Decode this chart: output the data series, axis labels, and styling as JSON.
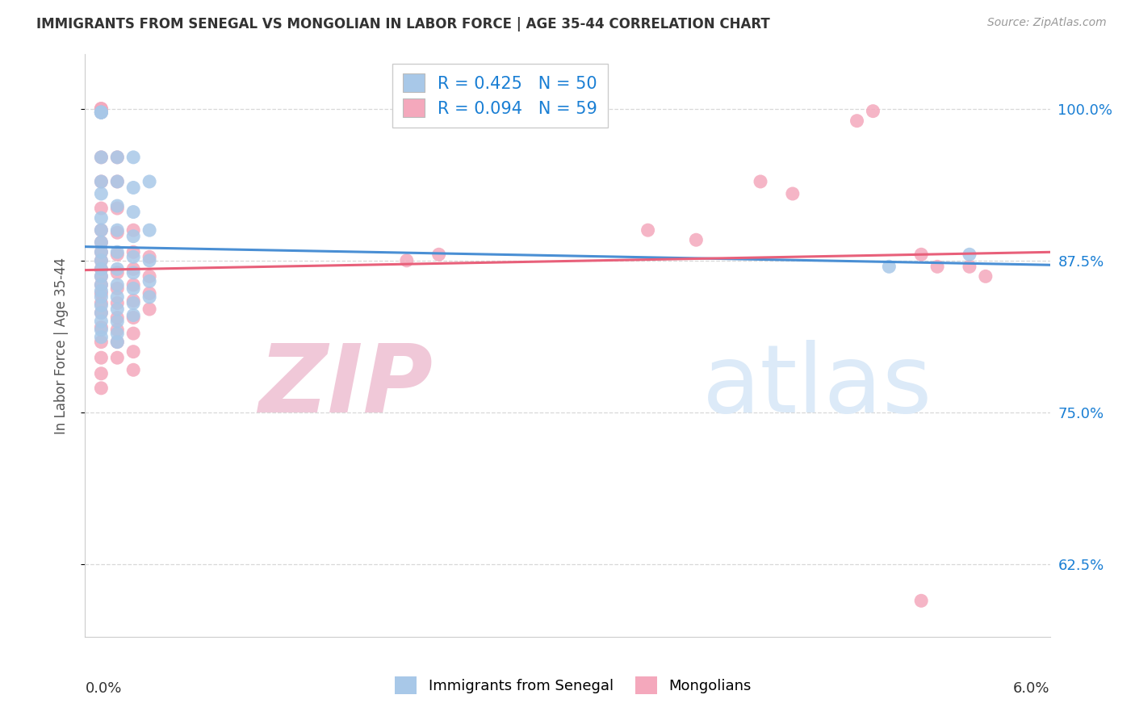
{
  "title": "IMMIGRANTS FROM SENEGAL VS MONGOLIAN IN LABOR FORCE | AGE 35-44 CORRELATION CHART",
  "source_text": "Source: ZipAtlas.com",
  "ylabel": "In Labor Force | Age 35-44",
  "ytick_labels": [
    "100.0%",
    "87.5%",
    "75.0%",
    "62.5%"
  ],
  "ytick_values": [
    1.0,
    0.875,
    0.75,
    0.625
  ],
  "xlim": [
    0.0,
    0.06
  ],
  "ylim": [
    0.565,
    1.045
  ],
  "legend_r_senegal": "R = 0.425",
  "legend_n_senegal": "N = 50",
  "legend_r_mongolian": "R = 0.094",
  "legend_n_mongolian": "N = 59",
  "senegal_color": "#a8c8e8",
  "mongolian_color": "#f4a8bc",
  "line_senegal_color": "#4a8fd4",
  "line_mongolian_color": "#e8607a",
  "watermark_color": "#dceaf8",
  "legend_text_color": "#1a7fd4",
  "title_color": "#333333",
  "source_color": "#999999",
  "ylabel_color": "#555555",
  "right_tick_color": "#1a7fd4",
  "bottom_label_color": "#333333",
  "grid_color": "#d8d8d8",
  "border_color": "#cccccc",
  "senegal_points": [
    [
      0.001,
      0.997
    ],
    [
      0.001,
      0.997
    ],
    [
      0.001,
      0.997
    ],
    [
      0.001,
      0.997
    ],
    [
      0.001,
      0.96
    ],
    [
      0.001,
      0.94
    ],
    [
      0.001,
      0.93
    ],
    [
      0.001,
      0.91
    ],
    [
      0.001,
      0.9
    ],
    [
      0.001,
      0.89
    ],
    [
      0.001,
      0.882
    ],
    [
      0.001,
      0.875
    ],
    [
      0.001,
      0.868
    ],
    [
      0.001,
      0.862
    ],
    [
      0.001,
      0.855
    ],
    [
      0.001,
      0.85
    ],
    [
      0.001,
      0.845
    ],
    [
      0.001,
      0.838
    ],
    [
      0.001,
      0.832
    ],
    [
      0.001,
      0.825
    ],
    [
      0.001,
      0.818
    ],
    [
      0.001,
      0.812
    ],
    [
      0.002,
      0.96
    ],
    [
      0.002,
      0.94
    ],
    [
      0.002,
      0.92
    ],
    [
      0.002,
      0.9
    ],
    [
      0.002,
      0.882
    ],
    [
      0.002,
      0.868
    ],
    [
      0.002,
      0.855
    ],
    [
      0.002,
      0.845
    ],
    [
      0.002,
      0.835
    ],
    [
      0.002,
      0.825
    ],
    [
      0.002,
      0.815
    ],
    [
      0.002,
      0.808
    ],
    [
      0.003,
      0.96
    ],
    [
      0.003,
      0.935
    ],
    [
      0.003,
      0.915
    ],
    [
      0.003,
      0.895
    ],
    [
      0.003,
      0.878
    ],
    [
      0.003,
      0.865
    ],
    [
      0.003,
      0.852
    ],
    [
      0.003,
      0.84
    ],
    [
      0.003,
      0.83
    ],
    [
      0.004,
      0.94
    ],
    [
      0.004,
      0.9
    ],
    [
      0.004,
      0.875
    ],
    [
      0.004,
      0.858
    ],
    [
      0.004,
      0.845
    ],
    [
      0.05,
      0.87
    ],
    [
      0.055,
      0.88
    ]
  ],
  "mongolian_points": [
    [
      0.001,
      1.0
    ],
    [
      0.001,
      1.0
    ],
    [
      0.001,
      0.997
    ],
    [
      0.001,
      0.96
    ],
    [
      0.001,
      0.94
    ],
    [
      0.001,
      0.918
    ],
    [
      0.001,
      0.9
    ],
    [
      0.001,
      0.89
    ],
    [
      0.001,
      0.882
    ],
    [
      0.001,
      0.875
    ],
    [
      0.001,
      0.868
    ],
    [
      0.001,
      0.862
    ],
    [
      0.001,
      0.855
    ],
    [
      0.001,
      0.848
    ],
    [
      0.001,
      0.84
    ],
    [
      0.001,
      0.832
    ],
    [
      0.001,
      0.82
    ],
    [
      0.001,
      0.808
    ],
    [
      0.001,
      0.795
    ],
    [
      0.001,
      0.782
    ],
    [
      0.001,
      0.77
    ],
    [
      0.002,
      0.96
    ],
    [
      0.002,
      0.94
    ],
    [
      0.002,
      0.918
    ],
    [
      0.002,
      0.898
    ],
    [
      0.002,
      0.88
    ],
    [
      0.002,
      0.865
    ],
    [
      0.002,
      0.852
    ],
    [
      0.002,
      0.84
    ],
    [
      0.002,
      0.828
    ],
    [
      0.002,
      0.818
    ],
    [
      0.002,
      0.808
    ],
    [
      0.002,
      0.795
    ],
    [
      0.003,
      0.9
    ],
    [
      0.003,
      0.882
    ],
    [
      0.003,
      0.868
    ],
    [
      0.003,
      0.855
    ],
    [
      0.003,
      0.842
    ],
    [
      0.003,
      0.828
    ],
    [
      0.003,
      0.815
    ],
    [
      0.003,
      0.8
    ],
    [
      0.003,
      0.785
    ],
    [
      0.004,
      0.878
    ],
    [
      0.004,
      0.862
    ],
    [
      0.004,
      0.848
    ],
    [
      0.004,
      0.835
    ],
    [
      0.02,
      0.875
    ],
    [
      0.022,
      0.88
    ],
    [
      0.035,
      0.9
    ],
    [
      0.038,
      0.892
    ],
    [
      0.042,
      0.94
    ],
    [
      0.044,
      0.93
    ],
    [
      0.048,
      0.99
    ],
    [
      0.049,
      0.998
    ],
    [
      0.052,
      0.88
    ],
    [
      0.053,
      0.87
    ],
    [
      0.055,
      0.87
    ],
    [
      0.056,
      0.862
    ],
    [
      0.052,
      0.595
    ]
  ]
}
